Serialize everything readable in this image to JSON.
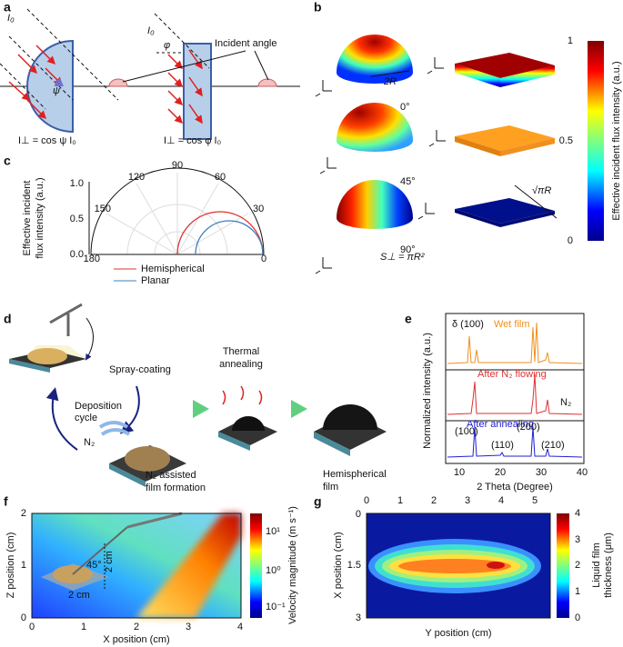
{
  "a": {
    "label": "a",
    "intensity_left": "I₀",
    "intensity_right": "I₀",
    "angle_left": "ψ",
    "angle_right": "φ",
    "callout": "Incident angle",
    "eq_left": "I⊥ = cos ψ I₀",
    "eq_right": "I⊥ = cos φ I₀"
  },
  "b": {
    "label": "b",
    "radius": "2R",
    "angles": [
      "0°",
      "45°",
      "90°"
    ],
    "side": "√πR",
    "area": "S⊥ = πR²",
    "colorbar_title": "Effective incident flux intensity (a.u.)",
    "colorbar_ticks": [
      "1",
      "0.5",
      "0"
    ]
  },
  "c": {
    "label": "c",
    "y_label": [
      "Effective incident",
      "flux intensity (a.u.)"
    ],
    "y_ticks": [
      "1.0",
      "0.5",
      "0.0"
    ],
    "angle_ticks": [
      "180",
      "150",
      "120",
      "90",
      "60",
      "30",
      "0"
    ],
    "legend": [
      "Hemispherical",
      "Planar"
    ]
  },
  "d": {
    "label": "d",
    "spray": "Spray-coating",
    "cycle": [
      "Deposition",
      "cycle"
    ],
    "gas": "N₂",
    "assisted": [
      "N₂ assisted",
      "film formation"
    ],
    "annealing": [
      "Thermal",
      "annealing"
    ],
    "result": [
      "Hemispherical",
      "film"
    ]
  },
  "e": {
    "label": "e",
    "y_label": "Normalized intensity (a.u.)",
    "x_label": "2 Theta (Degree)",
    "x_ticks": [
      "10",
      "20",
      "30",
      "40"
    ],
    "delta_peak": "δ (100)",
    "traces": [
      "Wet film",
      "After N₂ flowing",
      "After annealing"
    ],
    "inset_gas": "N₂",
    "peaks": [
      "(100)",
      "(110)",
      "(200)",
      "(210)"
    ]
  },
  "f": {
    "label": "f",
    "y_label": "Z position (cm)",
    "x_label": "X position (cm)",
    "x_ticks": [
      "0",
      "1",
      "2",
      "3",
      "4"
    ],
    "y_ticks": [
      "0",
      "1",
      "2"
    ],
    "angle": "45°",
    "dist_a": "2 cm",
    "dist_b": "2 cm",
    "colorbar_title": "Velocity magnitude (m s⁻¹)",
    "colorbar_ticks": [
      "10¹",
      "10⁰",
      "10⁻¹"
    ]
  },
  "g": {
    "label": "g",
    "y_label": "X position (cm)",
    "x_label": "Y position (cm)",
    "x_ticks": [
      "0",
      "1",
      "2",
      "3",
      "4",
      "5"
    ],
    "y_ticks": [
      "0",
      "1.5",
      "3"
    ],
    "colorbar_title": [
      "Liquid film",
      "thickness (μm)"
    ],
    "colorbar_ticks": [
      "4",
      "3",
      "2",
      "1",
      "0"
    ]
  }
}
